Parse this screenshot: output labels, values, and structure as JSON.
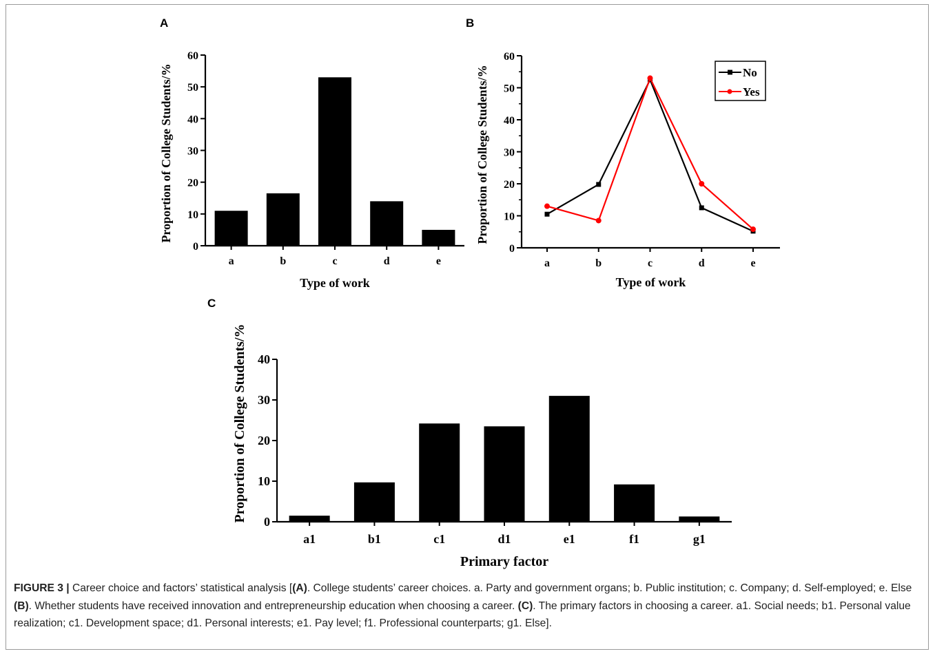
{
  "chart_data": [
    {
      "panel": "A",
      "type": "bar",
      "categories": [
        "a",
        "b",
        "c",
        "d",
        "e"
      ],
      "values": [
        11,
        16.5,
        53,
        14,
        5
      ],
      "xlabel": "Type of work",
      "ylabel": "Proportion of College Students/%",
      "ylim": [
        0,
        60
      ],
      "yticks": [
        0,
        10,
        20,
        30,
        40,
        50,
        60
      ],
      "bar_color": "#000000",
      "grid": false
    },
    {
      "panel": "B",
      "type": "line",
      "categories": [
        "a",
        "b",
        "c",
        "d",
        "e"
      ],
      "series": [
        {
          "name": "No",
          "values": [
            10.5,
            19.8,
            52.5,
            12.5,
            5.2
          ],
          "color": "#000000",
          "marker": "square"
        },
        {
          "name": "Yes",
          "values": [
            13,
            8.5,
            53,
            20,
            5.8
          ],
          "color": "#ff0000",
          "marker": "circle"
        }
      ],
      "xlabel": "Type of work",
      "ylabel": "Proportion of College Students/%",
      "ylim": [
        0,
        60
      ],
      "yticks": [
        0,
        10,
        20,
        30,
        40,
        50,
        60
      ],
      "legend": "top-right",
      "grid": false
    },
    {
      "panel": "C",
      "type": "bar",
      "categories": [
        "a1",
        "b1",
        "c1",
        "d1",
        "e1",
        "f1",
        "g1"
      ],
      "values": [
        1.5,
        9.7,
        24.2,
        23.5,
        31,
        9.2,
        1.3
      ],
      "xlabel": "Primary factor",
      "ylabel": "Proportion of College Students/%",
      "ylim": [
        0,
        40
      ],
      "yticks": [
        0,
        10,
        20,
        30,
        40
      ],
      "bar_color": "#000000",
      "grid": false
    }
  ],
  "panels": {
    "a": "A",
    "b": "B",
    "c": "C"
  },
  "caption": {
    "figure_label": "FIGURE 3 |",
    "part1": " Career choice and factors’ statistical analysis [",
    "ref_a": "(A)",
    "part2": ". College students’ career choices. a. Party and government organs; b. Public institution; c. Company; d. Self-employed; e. Else ",
    "ref_b": "(B)",
    "part3": ". Whether students have received innovation and entrepreneurship education when choosing a career. ",
    "ref_c": "(C)",
    "part4": ". The primary factors in choosing a career. a1. Social needs; b1. Personal value realization; c1. Development space; d1. Personal interests; e1. Pay level; f1. Professional counterparts; g1. Else]."
  }
}
